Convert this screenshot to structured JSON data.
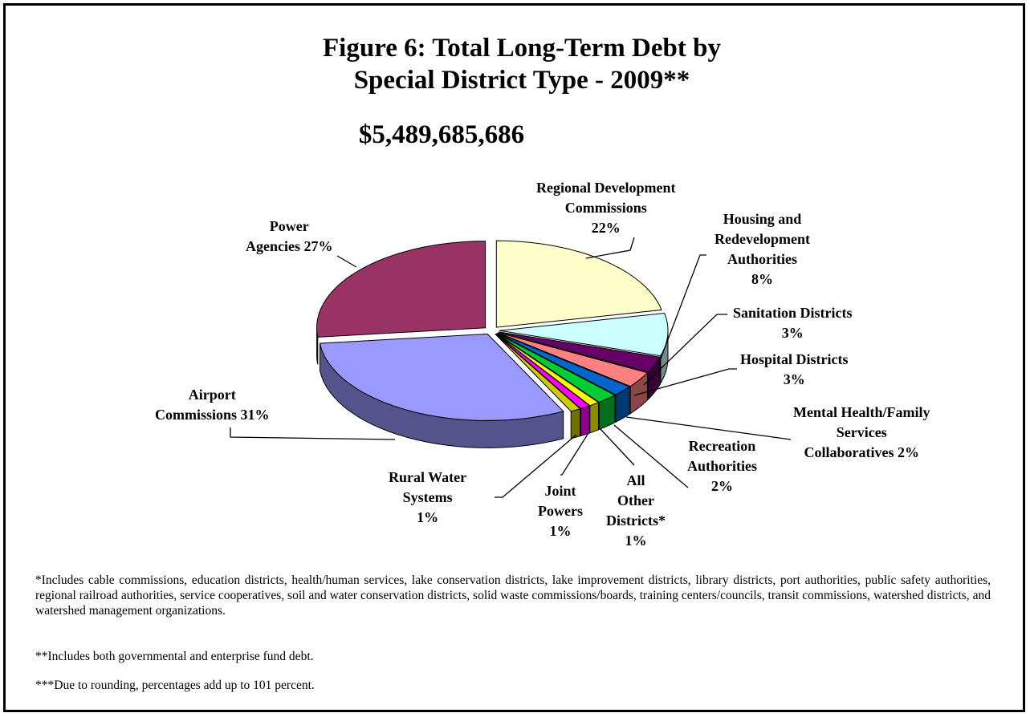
{
  "title_line1": "Figure 6:  Total Long-Term Debt by",
  "title_line2": "Special District Type - 2009**",
  "total": "$5,489,685,686",
  "chart_data": {
    "type": "pie",
    "title": "Figure 6:  Total Long-Term Debt by Special District Type - 2009**",
    "total_label": "$5,489,685,686",
    "slices": [
      {
        "name": "Regional Development Commissions",
        "percent": 22,
        "color": "#ffffcc"
      },
      {
        "name": "Housing and Redevelopment Authorities",
        "percent": 8,
        "color": "#ccffff"
      },
      {
        "name": "Sanitation Districts",
        "percent": 3,
        "color": "#660066"
      },
      {
        "name": "Hospital Districts",
        "percent": 3,
        "color": "#ff8080"
      },
      {
        "name": "Mental Health/Family Services Collaboratives",
        "percent": 2,
        "color": "#0066cc"
      },
      {
        "name": "Recreation Authorities",
        "percent": 2,
        "color": "#00cc33"
      },
      {
        "name": "All Other Districts*",
        "percent": 1,
        "color": "#ffff00"
      },
      {
        "name": "Joint Powers",
        "percent": 1,
        "color": "#ff00ff"
      },
      {
        "name": "Rural Water Systems",
        "percent": 1,
        "color": "#cccc00"
      },
      {
        "name": "Airport Commissions",
        "percent": 31,
        "color": "#9999ff"
      },
      {
        "name": "Power Agencies",
        "percent": 27,
        "color": "#993366"
      }
    ]
  },
  "labels": {
    "regional": [
      "Regional Development",
      "Commissions",
      "22%"
    ],
    "housing": [
      "Housing and",
      "Redevelopment",
      "Authorities",
      "8%"
    ],
    "sanitation": [
      "Sanitation Districts",
      "3%"
    ],
    "hospital": [
      "Hospital Districts",
      "3%"
    ],
    "mental": [
      "Mental Health/Family",
      "Services",
      "Collaboratives 2%"
    ],
    "recreation": [
      "Recreation",
      "Authorities",
      "2%"
    ],
    "allother": [
      "All",
      "Other",
      "Districts*",
      "1%"
    ],
    "joint": [
      "Joint",
      "Powers",
      "1%"
    ],
    "rural": [
      "Rural Water",
      "Systems",
      "1%"
    ],
    "airport": [
      "Airport",
      "Commissions 31%"
    ],
    "power": [
      "Power",
      "Agencies 27%"
    ]
  },
  "notes": {
    "note1": "*Includes cable commissions, education districts, health/human services, lake conservation districts, lake improvement districts, library districts, port authorities, public safety authorities, regional railroad authorities, service cooperatives, soil and water conservation districts, solid waste commissions/boards, training centers/councils, transit commissions, watershed districts, and watershed management organizations.",
    "note2": "**Includes both governmental and enterprise fund debt.",
    "note3": "***Due to rounding, percentages add up to 101 percent."
  }
}
